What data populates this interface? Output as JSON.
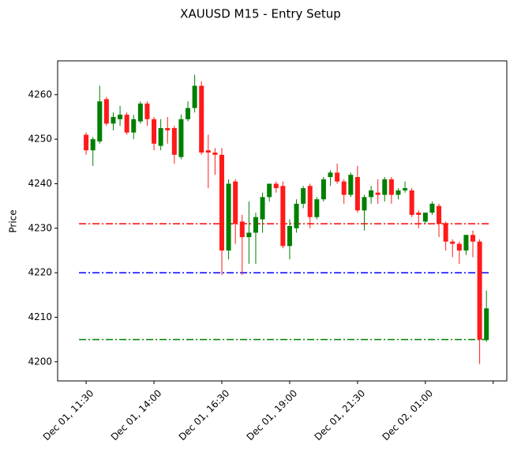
{
  "chart_data": {
    "type": "candlestick",
    "title": "XAUUSD M15 - Entry Setup",
    "y_label": "Price",
    "up_color": "#008000",
    "down_color": "#ff1a1a",
    "open": [
      4251,
      4247.5,
      4249.5,
      4259,
      4253.5,
      4254.5,
      4255.5,
      4251.5,
      4254,
      4258,
      4254.5,
      4248.5,
      4252.5,
      4252.5,
      4246,
      4254.5,
      4257,
      4262,
      4247.5,
      4247,
      4246.5,
      4225,
      4240.5,
      4231.5,
      4228,
      4229,
      4232,
      4237,
      4240,
      4239.5,
      4226,
      4230,
      4235.5,
      4239.5,
      4232.5,
      4236.5,
      4241.5,
      4242.5,
      4240.5,
      4237.5,
      4241.5,
      4234,
      4237,
      4238,
      4237.5,
      4241,
      4237.5,
      4238.5,
      4238.5,
      4233.5,
      4231.5,
      4233.5,
      4235,
      4231,
      4227,
      4226.5,
      4225,
      4228.5,
      4227,
      4205
    ],
    "high": [
      4251.5,
      4250.5,
      4262,
      4259.5,
      4256,
      4257.5,
      4256,
      4255.5,
      4258.5,
      4258.5,
      4255,
      4254.5,
      4255,
      4253,
      4255.5,
      4258.5,
      4264.5,
      4263,
      4251,
      4248,
      4248,
      4241,
      4241,
      4233,
      4236,
      4233.5,
      4238,
      4240,
      4240.5,
      4240.5,
      4232,
      4236.5,
      4239.5,
      4240,
      4237,
      4241.5,
      4243,
      4244.5,
      4241,
      4242.5,
      4244,
      4237.5,
      4239.5,
      4241,
      4241.5,
      4241.5,
      4239,
      4240.5,
      4239,
      4234,
      4233.5,
      4236,
      4235.5,
      4231.5,
      4227.5,
      4227,
      4228.5,
      4229.5,
      4227.5,
      4216
    ],
    "low": [
      4246.5,
      4244,
      4249,
      4253,
      4252,
      4253,
      4251,
      4250,
      4253.5,
      4253,
      4247.5,
      4247.5,
      4249,
      4244.5,
      4245.5,
      4254,
      4256,
      4246.5,
      4239,
      4242,
      4219.5,
      4223,
      4226.5,
      4219.5,
      4222,
      4222,
      4229,
      4236,
      4238,
      4225.5,
      4223,
      4229,
      4234.5,
      4230,
      4232,
      4236,
      4239.5,
      4240,
      4235.5,
      4237,
      4233.5,
      4229.5,
      4235.5,
      4235.5,
      4236,
      4235.5,
      4236.5,
      4238,
      4232.5,
      4230,
      4231,
      4233,
      4228,
      4225,
      4223.5,
      4222,
      4224,
      4223.5,
      4199.5,
      4204.5
    ],
    "close": [
      4247.5,
      4250,
      4258.5,
      4253.5,
      4255,
      4255.5,
      4251.5,
      4254.5,
      4258,
      4254.5,
      4249,
      4252.5,
      4252,
      4246.5,
      4254.5,
      4257,
      4262,
      4247,
      4247,
      4246.5,
      4225,
      4240,
      4231,
      4228,
      4229,
      4232.5,
      4237,
      4240,
      4239,
      4226,
      4230.5,
      4235.5,
      4239,
      4232.5,
      4236.5,
      4241,
      4242.5,
      4240.5,
      4237.5,
      4242,
      4234,
      4237,
      4238.5,
      4237.5,
      4241,
      4237.5,
      4238.5,
      4239,
      4233,
      4233,
      4233.5,
      4235.5,
      4231,
      4227,
      4226.5,
      4225,
      4228.5,
      4227,
      4205,
      4212
    ],
    "levels": [
      {
        "value": 4231,
        "color": "#ff0000"
      },
      {
        "value": 4220,
        "color": "#0000ff"
      },
      {
        "value": 4205,
        "color": "#008000"
      }
    ],
    "xlim": [
      -4.2,
      62
    ],
    "xticks": [
      {
        "value": 0,
        "label": "Dec 01, 11:30"
      },
      {
        "value": 10,
        "label": "Dec 01, 14:00"
      },
      {
        "value": 20,
        "label": "Dec 01, 16:30"
      },
      {
        "value": 30,
        "label": "Dec 01, 19:00"
      },
      {
        "value": 40,
        "label": "Dec 01, 21:30"
      },
      {
        "value": 50,
        "label": "Dec 02, 01:00"
      },
      {
        "value": 60,
        "label": null
      }
    ],
    "ylim": [
      4195.7,
      4267.6
    ],
    "yticks": [
      4200,
      4210,
      4220,
      4230,
      4240,
      4250,
      4260
    ]
  }
}
